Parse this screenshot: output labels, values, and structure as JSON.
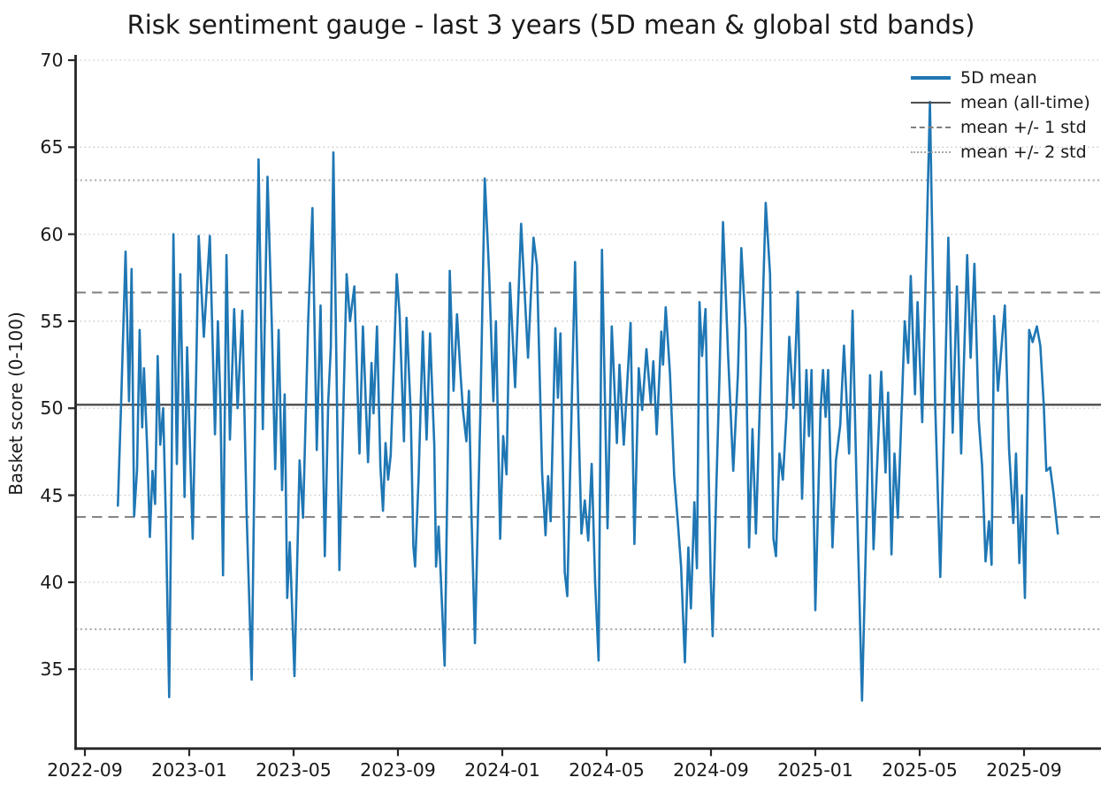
{
  "title": "Risk sentiment gauge - last 3 years (5D mean & global std bands)",
  "legend": {
    "items": [
      {
        "label": "5D mean",
        "swatch": "blue-solid-line"
      },
      {
        "label": "mean (all-time)",
        "swatch": "gray-solid-line"
      },
      {
        "label": "mean +/- 1 std",
        "swatch": "gray-dashed-line"
      },
      {
        "label": "mean +/- 2 std",
        "swatch": "gray-dotted-line"
      }
    ]
  },
  "colors": {
    "series": "#1f77b4",
    "mean_line": "#4d4d4d",
    "std1_line": "#7f7f7f",
    "std2_line": "#a8a8a8",
    "grid": "#c9c9c9",
    "spine": "#262626"
  },
  "chart_data": {
    "type": "line",
    "title": "Risk sentiment gauge - last 3 years (5D mean & global std bands)",
    "xlabel": "",
    "ylabel": "Basket score (0-100)",
    "ylim": [
      30.5,
      70.3
    ],
    "y_ticks": [
      35,
      40,
      45,
      50,
      55,
      60,
      65,
      70
    ],
    "x_tick_labels": [
      "2022-09",
      "2023-01",
      "2023-05",
      "2023-09",
      "2024-01",
      "2024-05",
      "2024-09",
      "2025-01",
      "2025-05",
      "2025-09"
    ],
    "grid": "horizontal dotted gridlines at each y tick",
    "legend_position": "upper right, no frame",
    "stats": {
      "mean_all_time": 50.2,
      "std": 6.45,
      "mean_plus_1std": 56.65,
      "mean_minus_1std": 43.75,
      "mean_plus_2std": 63.1,
      "mean_minus_2std": 37.3
    },
    "reference_lines": [
      {
        "name": "mean (all-time)",
        "value": 50.2,
        "style": "solid",
        "color": "#4d4d4d"
      },
      {
        "name": "mean +1 std",
        "value": 56.65,
        "style": "dashed",
        "color": "#7f7f7f"
      },
      {
        "name": "mean -1 std",
        "value": 43.75,
        "style": "dashed",
        "color": "#7f7f7f"
      },
      {
        "name": "mean +2 std",
        "value": 63.1,
        "style": "dotted",
        "color": "#a8a8a8"
      },
      {
        "name": "mean -2 std",
        "value": 37.3,
        "style": "dotted",
        "color": "#a8a8a8"
      }
    ],
    "series": [
      {
        "name": "5D mean",
        "color": "#1f77b4",
        "points": [
          [
            "2022-10-09",
            44.4
          ],
          [
            "2022-10-13",
            50.5
          ],
          [
            "2022-10-18",
            59.0
          ],
          [
            "2022-10-22",
            50.4
          ],
          [
            "2022-10-25",
            58.0
          ],
          [
            "2022-10-28",
            43.8
          ],
          [
            "2022-11-01",
            46.5
          ],
          [
            "2022-11-04",
            54.5
          ],
          [
            "2022-11-07",
            48.9
          ],
          [
            "2022-11-09",
            52.3
          ],
          [
            "2022-11-13",
            47.5
          ],
          [
            "2022-11-16",
            42.6
          ],
          [
            "2022-11-19",
            46.4
          ],
          [
            "2022-11-22",
            44.5
          ],
          [
            "2022-11-25",
            53.0
          ],
          [
            "2022-11-28",
            47.9
          ],
          [
            "2022-12-01",
            50.0
          ],
          [
            "2022-12-04",
            44.0
          ],
          [
            "2022-12-08",
            33.4
          ],
          [
            "2022-12-11",
            47.0
          ],
          [
            "2022-12-13",
            60.0
          ],
          [
            "2022-12-17",
            46.8
          ],
          [
            "2022-12-21",
            57.7
          ],
          [
            "2022-12-26",
            44.9
          ],
          [
            "2022-12-29",
            53.5
          ],
          [
            "2023-01-02",
            47.5
          ],
          [
            "2023-01-05",
            42.5
          ],
          [
            "2023-01-09",
            52.0
          ],
          [
            "2023-01-12",
            59.9
          ],
          [
            "2023-01-18",
            54.1
          ],
          [
            "2023-01-25",
            59.9
          ],
          [
            "2023-01-31",
            48.5
          ],
          [
            "2023-02-04",
            55.0
          ],
          [
            "2023-02-07",
            50.2
          ],
          [
            "2023-02-10",
            40.4
          ],
          [
            "2023-02-14",
            58.8
          ],
          [
            "2023-02-18",
            48.2
          ],
          [
            "2023-02-23",
            55.7
          ],
          [
            "2023-02-27",
            50.0
          ],
          [
            "2023-03-02",
            55.6
          ],
          [
            "2023-03-07",
            44.1
          ],
          [
            "2023-03-13",
            34.4
          ],
          [
            "2023-03-21",
            64.3
          ],
          [
            "2023-03-26",
            48.8
          ],
          [
            "2023-04-01",
            63.3
          ],
          [
            "2023-04-06",
            55.0
          ],
          [
            "2023-04-10",
            46.5
          ],
          [
            "2023-04-14",
            54.5
          ],
          [
            "2023-04-18",
            45.3
          ],
          [
            "2023-04-21",
            50.8
          ],
          [
            "2023-04-24",
            39.1
          ],
          [
            "2023-04-27",
            42.3
          ],
          [
            "2023-05-02",
            34.6
          ],
          [
            "2023-05-08",
            47.0
          ],
          [
            "2023-05-12",
            43.7
          ],
          [
            "2023-05-18",
            55.0
          ],
          [
            "2023-05-23",
            61.5
          ],
          [
            "2023-05-28",
            47.6
          ],
          [
            "2023-06-02",
            55.9
          ],
          [
            "2023-06-07",
            41.5
          ],
          [
            "2023-06-11",
            50.4
          ],
          [
            "2023-06-14",
            53.5
          ],
          [
            "2023-06-17",
            64.7
          ],
          [
            "2023-06-24",
            40.7
          ],
          [
            "2023-07-02",
            57.7
          ],
          [
            "2023-07-06",
            55.0
          ],
          [
            "2023-07-11",
            57.0
          ],
          [
            "2023-07-17",
            47.4
          ],
          [
            "2023-07-21",
            54.7
          ],
          [
            "2023-07-27",
            46.9
          ],
          [
            "2023-07-31",
            52.6
          ],
          [
            "2023-08-03",
            49.7
          ],
          [
            "2023-08-07",
            54.7
          ],
          [
            "2023-08-11",
            46.6
          ],
          [
            "2023-08-14",
            44.1
          ],
          [
            "2023-08-17",
            48.0
          ],
          [
            "2023-08-20",
            45.9
          ],
          [
            "2023-08-23",
            47.3
          ],
          [
            "2023-08-27",
            53.0
          ],
          [
            "2023-08-30",
            57.7
          ],
          [
            "2023-09-03",
            55.4
          ],
          [
            "2023-09-08",
            48.1
          ],
          [
            "2023-09-11",
            55.2
          ],
          [
            "2023-09-16",
            49.7
          ],
          [
            "2023-09-19",
            42.1
          ],
          [
            "2023-09-21",
            40.9
          ],
          [
            "2023-09-25",
            45.9
          ],
          [
            "2023-09-30",
            54.4
          ],
          [
            "2023-10-04",
            48.2
          ],
          [
            "2023-10-08",
            54.3
          ],
          [
            "2023-10-13",
            47.9
          ],
          [
            "2023-10-15",
            40.9
          ],
          [
            "2023-10-18",
            43.2
          ],
          [
            "2023-10-25",
            35.2
          ],
          [
            "2023-10-29",
            48.0
          ],
          [
            "2023-10-31",
            57.9
          ],
          [
            "2023-11-05",
            51.0
          ],
          [
            "2023-11-09",
            55.4
          ],
          [
            "2023-11-13",
            52.1
          ],
          [
            "2023-11-16",
            49.9
          ],
          [
            "2023-11-20",
            48.1
          ],
          [
            "2023-11-23",
            51.0
          ],
          [
            "2023-11-26",
            43.8
          ],
          [
            "2023-11-30",
            36.5
          ],
          [
            "2023-12-06",
            50.0
          ],
          [
            "2023-12-11",
            63.2
          ],
          [
            "2023-12-16",
            57.9
          ],
          [
            "2023-12-18",
            54.9
          ],
          [
            "2023-12-21",
            50.4
          ],
          [
            "2023-12-24",
            55.0
          ],
          [
            "2023-12-29",
            42.5
          ],
          [
            "2024-01-02",
            48.4
          ],
          [
            "2024-01-06",
            46.2
          ],
          [
            "2024-01-10",
            57.2
          ],
          [
            "2024-01-16",
            51.2
          ],
          [
            "2024-01-23",
            60.6
          ],
          [
            "2024-01-31",
            52.9
          ],
          [
            "2024-02-07",
            59.8
          ],
          [
            "2024-02-11",
            58.2
          ],
          [
            "2024-02-17",
            46.3
          ],
          [
            "2024-02-21",
            42.7
          ],
          [
            "2024-02-24",
            46.1
          ],
          [
            "2024-02-27",
            43.5
          ],
          [
            "2024-03-02",
            54.6
          ],
          [
            "2024-03-05",
            50.6
          ],
          [
            "2024-03-08",
            54.3
          ],
          [
            "2024-03-13",
            40.6
          ],
          [
            "2024-03-16",
            39.2
          ],
          [
            "2024-03-21",
            50.0
          ],
          [
            "2024-03-25",
            58.4
          ],
          [
            "2024-03-29",
            49.6
          ],
          [
            "2024-04-02",
            42.8
          ],
          [
            "2024-04-06",
            44.7
          ],
          [
            "2024-04-10",
            42.4
          ],
          [
            "2024-04-14",
            46.8
          ],
          [
            "2024-04-18",
            40.0
          ],
          [
            "2024-04-22",
            35.5
          ],
          [
            "2024-04-26",
            59.1
          ],
          [
            "2024-05-02",
            43.1
          ],
          [
            "2024-05-07",
            54.7
          ],
          [
            "2024-05-13",
            48.0
          ],
          [
            "2024-05-16",
            52.5
          ],
          [
            "2024-05-21",
            47.9
          ],
          [
            "2024-05-29",
            54.9
          ],
          [
            "2024-06-03",
            42.2
          ],
          [
            "2024-06-08",
            52.3
          ],
          [
            "2024-06-12",
            49.9
          ],
          [
            "2024-06-17",
            53.4
          ],
          [
            "2024-06-22",
            50.3
          ],
          [
            "2024-06-25",
            52.7
          ],
          [
            "2024-06-29",
            48.5
          ],
          [
            "2024-07-04",
            54.4
          ],
          [
            "2024-07-06",
            52.5
          ],
          [
            "2024-07-09",
            55.8
          ],
          [
            "2024-07-14",
            52.0
          ],
          [
            "2024-07-19",
            46.1
          ],
          [
            "2024-07-23",
            43.6
          ],
          [
            "2024-07-27",
            40.9
          ],
          [
            "2024-08-01",
            35.4
          ],
          [
            "2024-08-05",
            42.0
          ],
          [
            "2024-08-08",
            38.5
          ],
          [
            "2024-08-12",
            44.6
          ],
          [
            "2024-08-15",
            40.8
          ],
          [
            "2024-08-18",
            56.1
          ],
          [
            "2024-08-21",
            53.0
          ],
          [
            "2024-08-25",
            55.7
          ],
          [
            "2024-08-31",
            40.4
          ],
          [
            "2024-09-03",
            36.9
          ],
          [
            "2024-09-07",
            45.0
          ],
          [
            "2024-09-11",
            52.0
          ],
          [
            "2024-09-15",
            60.7
          ],
          [
            "2024-09-21",
            53.0
          ],
          [
            "2024-09-27",
            46.4
          ],
          [
            "2024-10-02",
            52.0
          ],
          [
            "2024-10-06",
            59.2
          ],
          [
            "2024-10-11",
            54.6
          ],
          [
            "2024-10-15",
            42.0
          ],
          [
            "2024-10-19",
            48.8
          ],
          [
            "2024-10-23",
            42.8
          ],
          [
            "2024-10-28",
            51.0
          ],
          [
            "2024-11-04",
            61.8
          ],
          [
            "2024-11-09",
            57.7
          ],
          [
            "2024-11-13",
            42.5
          ],
          [
            "2024-11-16",
            41.5
          ],
          [
            "2024-11-20",
            47.4
          ],
          [
            "2024-11-24",
            45.9
          ],
          [
            "2024-11-28",
            49.5
          ],
          [
            "2024-12-01",
            54.1
          ],
          [
            "2024-12-06",
            50.0
          ],
          [
            "2024-12-11",
            56.7
          ],
          [
            "2024-12-16",
            44.8
          ],
          [
            "2024-12-21",
            52.2
          ],
          [
            "2024-12-24",
            48.4
          ],
          [
            "2024-12-27",
            52.2
          ],
          [
            "2025-01-01",
            38.4
          ],
          [
            "2025-01-07",
            49.8
          ],
          [
            "2025-01-10",
            52.2
          ],
          [
            "2025-01-13",
            49.5
          ],
          [
            "2025-01-16",
            52.2
          ],
          [
            "2025-01-21",
            42.0
          ],
          [
            "2025-01-25",
            47.0
          ],
          [
            "2025-01-30",
            49.0
          ],
          [
            "2025-02-04",
            53.6
          ],
          [
            "2025-02-10",
            47.4
          ],
          [
            "2025-02-14",
            55.6
          ],
          [
            "2025-02-19",
            45.0
          ],
          [
            "2025-02-25",
            33.2
          ],
          [
            "2025-03-04",
            51.9
          ],
          [
            "2025-03-08",
            41.9
          ],
          [
            "2025-03-17",
            52.1
          ],
          [
            "2025-03-22",
            46.3
          ],
          [
            "2025-03-25",
            50.9
          ],
          [
            "2025-03-29",
            41.6
          ],
          [
            "2025-04-02",
            47.4
          ],
          [
            "2025-04-06",
            43.7
          ],
          [
            "2025-04-14",
            55.0
          ],
          [
            "2025-04-18",
            52.6
          ],
          [
            "2025-04-21",
            57.6
          ],
          [
            "2025-04-26",
            50.8
          ],
          [
            "2025-04-29",
            56.1
          ],
          [
            "2025-05-04",
            49.2
          ],
          [
            "2025-05-13",
            67.6
          ],
          [
            "2025-05-19",
            50.5
          ],
          [
            "2025-05-25",
            40.3
          ],
          [
            "2025-05-30",
            50.0
          ],
          [
            "2025-06-04",
            59.8
          ],
          [
            "2025-06-09",
            48.6
          ],
          [
            "2025-06-14",
            57.0
          ],
          [
            "2025-06-19",
            47.4
          ],
          [
            "2025-06-26",
            58.8
          ],
          [
            "2025-06-30",
            52.9
          ],
          [
            "2025-07-04",
            58.3
          ],
          [
            "2025-07-09",
            49.3
          ],
          [
            "2025-07-13",
            46.7
          ],
          [
            "2025-07-17",
            41.2
          ],
          [
            "2025-07-21",
            43.5
          ],
          [
            "2025-07-24",
            41.0
          ],
          [
            "2025-07-27",
            55.3
          ],
          [
            "2025-08-01",
            51.0
          ],
          [
            "2025-08-09",
            55.9
          ],
          [
            "2025-08-14",
            47.6
          ],
          [
            "2025-08-19",
            43.4
          ],
          [
            "2025-08-22",
            47.4
          ],
          [
            "2025-08-26",
            41.1
          ],
          [
            "2025-08-29",
            45.0
          ],
          [
            "2025-09-02",
            39.1
          ],
          [
            "2025-09-07",
            54.5
          ],
          [
            "2025-09-11",
            53.8
          ],
          [
            "2025-09-16",
            54.7
          ],
          [
            "2025-09-20",
            53.6
          ],
          [
            "2025-09-24",
            50.2
          ],
          [
            "2025-09-27",
            46.4
          ],
          [
            "2025-10-01",
            46.6
          ],
          [
            "2025-10-05",
            45.1
          ],
          [
            "2025-10-10",
            42.8
          ]
        ]
      }
    ]
  }
}
